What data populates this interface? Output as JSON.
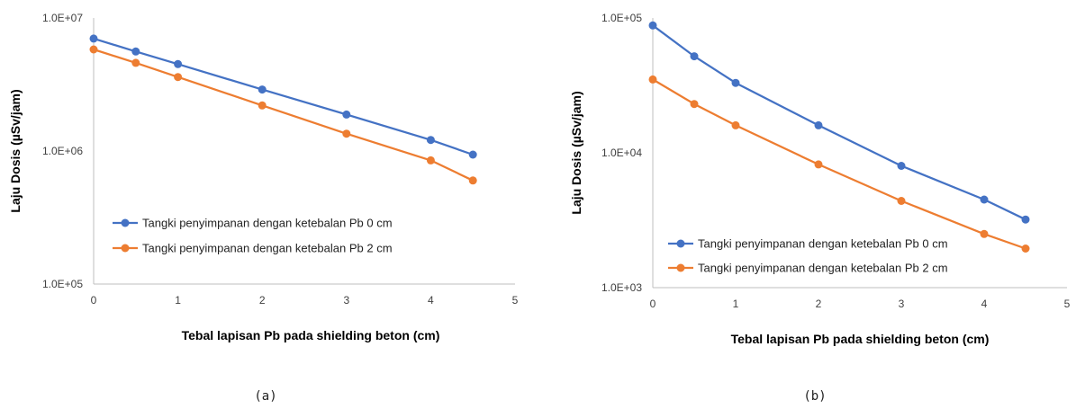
{
  "chart_data": [
    {
      "type": "line",
      "caption": "(a)",
      "xlabel": "Tebal lapisan Pb pada shielding beton (cm)",
      "ylabel": "Laju Dosis (µSv/jam)",
      "xlim": [
        0,
        5
      ],
      "xticks": [
        "0",
        "1",
        "2",
        "3",
        "4",
        "5"
      ],
      "ylim": [
        100000,
        10000000
      ],
      "yscale": "log",
      "yticks": [
        "1.0E+05",
        "1.0E+06",
        "1.0E+07"
      ],
      "grid": false,
      "legend_position": "lower-left",
      "x": [
        0,
        0.5,
        1,
        2,
        3,
        4,
        4.5
      ],
      "series": [
        {
          "name": "Tangki penyimpanan dengan ketebalan Pb 0 cm",
          "color": "#4472c4",
          "values": [
            7000000,
            5600000,
            4500000,
            2900000,
            1880000,
            1210000,
            940000
          ]
        },
        {
          "name": "Tangki penyimpanan dengan ketebalan Pb 2 cm",
          "color": "#ed7d31",
          "values": [
            5800000,
            4600000,
            3600000,
            2200000,
            1350000,
            850000,
            600000
          ]
        }
      ]
    },
    {
      "type": "line",
      "caption": "(b)",
      "xlabel": "Tebal lapisan Pb pada shielding beton (cm)",
      "ylabel": "Laju Dosis (µSv/jam)",
      "xlim": [
        0,
        5
      ],
      "xticks": [
        "0",
        "1",
        "2",
        "3",
        "4",
        "5"
      ],
      "ylim": [
        1000,
        100000
      ],
      "yscale": "log",
      "yticks": [
        "1.0E+03",
        "1.0E+04",
        "1.0E+05"
      ],
      "grid": false,
      "legend_position": "lower-left",
      "x": [
        0,
        0.5,
        1,
        2,
        3,
        4,
        4.5
      ],
      "series": [
        {
          "name": "Tangki penyimpanan dengan ketebalan Pb 0 cm",
          "color": "#4472c4",
          "values": [
            88000,
            52000,
            33000,
            16000,
            8000,
            4500,
            3200
          ]
        },
        {
          "name": "Tangki penyimpanan dengan ketebalan Pb 2 cm",
          "color": "#ed7d31",
          "values": [
            35000,
            23000,
            16000,
            8200,
            4400,
            2500,
            1950
          ]
        }
      ]
    }
  ]
}
